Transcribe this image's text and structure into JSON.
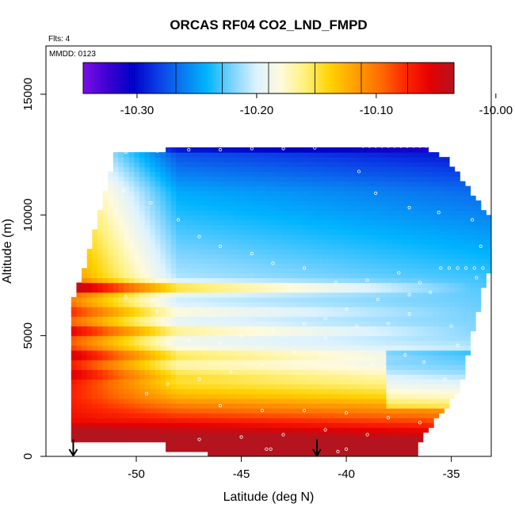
{
  "chart_data": {
    "type": "heatmap",
    "title": "ORCAS RF04 CO2_LND_FMPD",
    "note_flights": "Flts: 4",
    "note_date": "MMDD: 0123",
    "xlabel": "Latitude (deg N)",
    "ylabel": "Altitude (m)",
    "xlim": [
      -54.3,
      -33.1
    ],
    "ylim": [
      0,
      17000
    ],
    "x_ticks": [
      -50,
      -45,
      -40,
      -35
    ],
    "x_tick_labels": [
      "-50",
      "-45",
      "-40",
      "-35"
    ],
    "y_ticks": [
      0,
      5000,
      10000,
      15000
    ],
    "y_tick_labels": [
      "0",
      "5000",
      "10000",
      "15000"
    ],
    "colorbar": {
      "range": [
        -10.345,
        -10.035
      ],
      "ticks": [
        -10.3,
        -10.2,
        -10.1,
        -10.0
      ],
      "tick_labels": [
        "-10.30",
        "-10.20",
        "-10.10",
        "-10.00"
      ],
      "colors": [
        "#7a10e6",
        "#3c00d2",
        "#0000c8",
        "#0a3ce6",
        "#0a78f0",
        "#00b4ff",
        "#78d2ff",
        "#dcf2ff",
        "#fffadc",
        "#fff078",
        "#ffd200",
        "#ffa000",
        "#ff6e00",
        "#ff2800",
        "#e60000",
        "#b4141e"
      ]
    },
    "field": {
      "lat_range": [
        -53.1,
        -33.3
      ],
      "alt_top_profile": [
        [
          -53.1,
          6200
        ],
        [
          -52.2,
          8600
        ],
        [
          -51.0,
          12500
        ],
        [
          -48.6,
          12700
        ],
        [
          -39.4,
          12800
        ],
        [
          -38.5,
          12850
        ],
        [
          -36.5,
          12800
        ],
        [
          -35.3,
          12400
        ],
        [
          -33.3,
          10000
        ]
      ],
      "alt_bottom_profile": [
        [
          -53.1,
          700
        ],
        [
          -50.9,
          700
        ],
        [
          -50.9,
          550
        ],
        [
          -48.6,
          550
        ],
        [
          -48.6,
          300
        ],
        [
          -46.5,
          300
        ],
        [
          -46.5,
          0
        ],
        [
          -36.6,
          0
        ],
        [
          -36.6,
          500
        ],
        [
          -34.6,
          2800
        ],
        [
          -33.3,
          7600
        ]
      ],
      "vertical_profile": [
        [
          0,
          -10.03
        ],
        [
          500,
          -10.0
        ],
        [
          1000,
          -10.04
        ],
        [
          1600,
          -10.08
        ],
        [
          2500,
          -10.13
        ],
        [
          3500,
          -10.17
        ],
        [
          5000,
          -10.2
        ],
        [
          7000,
          -10.21
        ],
        [
          9000,
          -10.23
        ],
        [
          11000,
          -10.25
        ],
        [
          12500,
          -10.28
        ],
        [
          13000,
          -10.33
        ]
      ],
      "latitude_gradient": -0.0015,
      "high_lat_bright_band": [
        -53.1,
        -48.0
      ],
      "layers": [
        {
          "altitude": 7000,
          "delta": 0.09
        },
        {
          "altitude": 6000,
          "delta": 0.03
        },
        {
          "altitude": 5200,
          "delta": 0.05
        },
        {
          "altitude": 4200,
          "delta": 0.04
        },
        {
          "altitude": 3400,
          "delta": 0.02
        }
      ]
    },
    "observations": [
      [
        -52.0,
        12600
      ],
      [
        -50.5,
        12600
      ],
      [
        -49.0,
        12650
      ],
      [
        -47.5,
        12700
      ],
      [
        -46.0,
        12700
      ],
      [
        -44.5,
        12750
      ],
      [
        -43.0,
        12750
      ],
      [
        -41.5,
        12780
      ],
      [
        -39.2,
        12850
      ],
      [
        -38.9,
        12850
      ],
      [
        -38.6,
        12850
      ],
      [
        -38.3,
        12850
      ],
      [
        -38.0,
        12850
      ],
      [
        -37.7,
        12850
      ],
      [
        -37.4,
        12850
      ],
      [
        -37.1,
        12850
      ],
      [
        -36.8,
        12850
      ],
      [
        -36.5,
        12850
      ],
      [
        -36.2,
        12850
      ],
      [
        -35.9,
        12850
      ],
      [
        -35.6,
        12850
      ],
      [
        -35.3,
        12850
      ],
      [
        -39.4,
        11800
      ],
      [
        -38.6,
        10900
      ],
      [
        -37.0,
        10300
      ],
      [
        -35.6,
        10100
      ],
      [
        -34.0,
        9800
      ],
      [
        -33.6,
        8700
      ],
      [
        -33.8,
        7400
      ],
      [
        -35.5,
        7800
      ],
      [
        -35.1,
        7800
      ],
      [
        -34.7,
        7800
      ],
      [
        -34.3,
        7800
      ],
      [
        -33.9,
        7800
      ],
      [
        -33.5,
        7800
      ],
      [
        -36.5,
        7200
      ],
      [
        -37.0,
        6700
      ],
      [
        -38.5,
        6500
      ],
      [
        -40.0,
        6100
      ],
      [
        -41.0,
        5700
      ],
      [
        -42.0,
        5500
      ],
      [
        -43.5,
        5200
      ],
      [
        -45.0,
        5000
      ],
      [
        -46.0,
        4700
      ],
      [
        -47.5,
        4800
      ],
      [
        -49.0,
        6000
      ],
      [
        -50.5,
        6600
      ],
      [
        -51.8,
        11400
      ],
      [
        -50.6,
        11000
      ],
      [
        -49.3,
        10500
      ],
      [
        -48.0,
        9800
      ],
      [
        -47.0,
        9100
      ],
      [
        -46.0,
        8700
      ],
      [
        -44.5,
        8400
      ],
      [
        -43.5,
        8000
      ],
      [
        -42.0,
        7800
      ],
      [
        -40.5,
        7200
      ],
      [
        -39.0,
        7300
      ],
      [
        -37.5,
        7600
      ],
      [
        -36.0,
        6800
      ],
      [
        -37.0,
        5900
      ],
      [
        -38.0,
        5500
      ],
      [
        -39.5,
        5400
      ],
      [
        -41.0,
        4900
      ],
      [
        -42.5,
        4300
      ],
      [
        -44.0,
        3800
      ],
      [
        -45.5,
        3500
      ],
      [
        -47.0,
        3200
      ],
      [
        -48.5,
        3000
      ],
      [
        -49.5,
        2600
      ],
      [
        -46.0,
        2100
      ],
      [
        -44.0,
        1900
      ],
      [
        -42.0,
        1900
      ],
      [
        -40.0,
        1800
      ],
      [
        -38.0,
        1600
      ],
      [
        -36.5,
        1400
      ],
      [
        -41.0,
        1100
      ],
      [
        -43.0,
        900
      ],
      [
        -45.0,
        800
      ],
      [
        -39.0,
        900
      ],
      [
        -40.0,
        300
      ],
      [
        -40.4,
        200
      ],
      [
        -43.8,
        300
      ],
      [
        -43.6,
        300
      ],
      [
        -47.0,
        700
      ],
      [
        -35.3,
        3200
      ],
      [
        -36.3,
        3900
      ],
      [
        -37.2,
        4200
      ],
      [
        -38.8,
        3800
      ],
      [
        -35.0,
        5400
      ],
      [
        -34.7,
        4600
      ]
    ],
    "arrows": [
      -53.0,
      -41.4
    ]
  }
}
